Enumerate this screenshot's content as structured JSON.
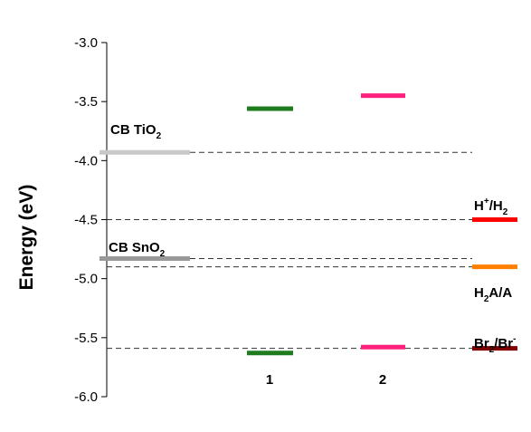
{
  "chart_data": {
    "type": "scatter",
    "title": "",
    "xlabel": "",
    "ylabel": "Energy (eV)",
    "ylim": [
      -6.0,
      -3.0
    ],
    "yticks": [
      -3.0,
      -3.5,
      -4.0,
      -4.5,
      -5.0,
      -5.5,
      -6.0
    ],
    "ytick_labels": [
      "-3.0",
      "-3.5",
      "-4.0",
      "-4.5",
      "-5.0",
      "-5.5",
      "-6.0"
    ],
    "categories": [
      "1",
      "2"
    ],
    "grid": false,
    "levels": [
      {
        "key": "cb_tio2",
        "label": "CB TiO",
        "label_sub": "2",
        "energy": -3.93,
        "color": "#c8c8c8",
        "position": "left"
      },
      {
        "key": "cb_sno2",
        "label": "CB SnO",
        "label_sub": "2",
        "energy": -4.83,
        "color": "#999999",
        "position": "left"
      },
      {
        "key": "dye1_lumo",
        "label": "",
        "energy": -3.56,
        "color": "#1e7b1e",
        "position": "1"
      },
      {
        "key": "dye1_homo",
        "label": "",
        "energy": -5.63,
        "color": "#1e7b1e",
        "position": "1"
      },
      {
        "key": "dye2_lumo",
        "label": "",
        "energy": -3.45,
        "color": "#ff1f7d",
        "position": "2"
      },
      {
        "key": "dye2_homo",
        "label": "",
        "energy": -5.58,
        "color": "#ff1f7d",
        "position": "2"
      },
      {
        "key": "h_h2",
        "label": "H+/H2",
        "energy": -4.5,
        "color": "#ff0000",
        "position": "right"
      },
      {
        "key": "h2a_a",
        "label": "H2A/A",
        "energy": -4.9,
        "color": "#ff8000",
        "position": "right"
      },
      {
        "key": "br2_br",
        "label": "Br2/Br-",
        "energy": -5.59,
        "color": "#800000",
        "position": "right"
      }
    ],
    "dashed_lines": [
      -3.93,
      -4.5,
      -4.83,
      -4.9,
      -5.59
    ]
  },
  "text": {
    "cb_tio2_main": "CB TiO",
    "cb_tio2_sub": "2",
    "cb_sno2_main": "CB SnO",
    "cb_sno2_sub": "2",
    "h_main": "H",
    "h_sup": "+",
    "h_slash": "/H",
    "h_sub": "2",
    "h2a_main": "H",
    "h2a_sub": "2",
    "h2a_rest": "A/A",
    "br_main": "Br",
    "br_sub": "2",
    "br_slash": "/Br",
    "br_sup": "-",
    "cat1": "1",
    "cat2": "2"
  }
}
